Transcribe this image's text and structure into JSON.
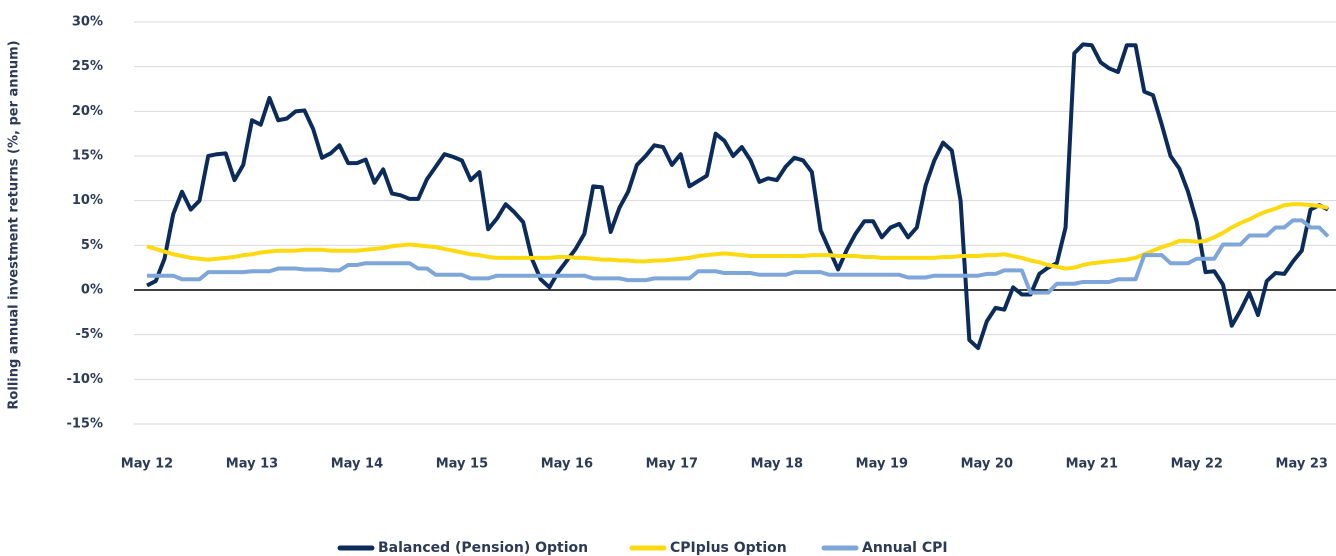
{
  "chart_data": {
    "type": "line",
    "y_label": "Rolling annual investment returns (%, per annum)",
    "categories": [
      "May 12",
      null,
      null,
      null,
      null,
      null,
      null,
      null,
      null,
      null,
      null,
      null,
      "May 13",
      null,
      null,
      null,
      null,
      null,
      null,
      null,
      null,
      null,
      null,
      null,
      "May 14",
      null,
      null,
      null,
      null,
      null,
      null,
      null,
      null,
      null,
      null,
      null,
      "May 15",
      null,
      null,
      null,
      null,
      null,
      null,
      null,
      null,
      null,
      null,
      null,
      "May 16",
      null,
      null,
      null,
      null,
      null,
      null,
      null,
      null,
      null,
      null,
      null,
      "May 17",
      null,
      null,
      null,
      null,
      null,
      null,
      null,
      null,
      null,
      null,
      null,
      "May 18",
      null,
      null,
      null,
      null,
      null,
      null,
      null,
      null,
      null,
      null,
      null,
      "May 19",
      null,
      null,
      null,
      null,
      null,
      null,
      null,
      null,
      null,
      null,
      null,
      "May 20",
      null,
      null,
      null,
      null,
      null,
      null,
      null,
      null,
      null,
      null,
      null,
      "May 21",
      null,
      null,
      null,
      null,
      null,
      null,
      null,
      null,
      null,
      null,
      null,
      "May 22",
      null,
      null,
      null,
      null,
      null,
      null,
      null,
      null,
      null,
      null,
      null,
      "May 23",
      null,
      null,
      null
    ],
    "series": [
      {
        "name": "Balanced (Pension) Option",
        "color": "#0b2c5a",
        "values": [
          0.5,
          1,
          3.5,
          8.5,
          11,
          9,
          10,
          15,
          15.2,
          15.3,
          12.3,
          14,
          19,
          18.5,
          21.5,
          19,
          19.2,
          20,
          20.1,
          18,
          14.8,
          15.3,
          16.2,
          14.2,
          14.2,
          14.6,
          12,
          13.5,
          10.8,
          10.6,
          10.2,
          10.2,
          12.4,
          13.8,
          15.2,
          14.9,
          14.5,
          12.3,
          13.2,
          6.8,
          8,
          9.6,
          8.7,
          7.6,
          3.5,
          1.2,
          0.3,
          2,
          3.3,
          4.6,
          6.3,
          11.6,
          11.5,
          6.5,
          9.2,
          11,
          14,
          15,
          16.2,
          16,
          14,
          15.2,
          11.6,
          12.2,
          12.8,
          17.5,
          16.7,
          15,
          16,
          14.5,
          12.1,
          12.5,
          12.3,
          13.8,
          14.8,
          14.5,
          13.2,
          6.7,
          4.5,
          2.3,
          4.5,
          6.3,
          7.7,
          7.7,
          5.9,
          7,
          7.4,
          5.9,
          7,
          11.7,
          14.5,
          16.5,
          15.6,
          10,
          -5.6,
          -6.5,
          -3.5,
          -2,
          -2.2,
          0.3,
          -0.5,
          -0.5,
          1.8,
          2.5,
          3,
          7,
          26.5,
          27.5,
          27.4,
          25.5,
          24.8,
          24.4,
          27.4,
          27.4,
          22.2,
          21.8,
          18.5,
          15,
          13.6,
          11,
          7.6,
          2,
          2.1,
          0.6,
          -4,
          -2.3,
          -0.3,
          -2.8,
          1,
          1.9,
          1.8,
          3.2,
          4.4,
          9,
          9.5,
          9
        ]
      },
      {
        "name": "CPIplus Option",
        "color": "#fdd90f",
        "values": [
          4.9,
          4.6,
          4.3,
          4,
          3.8,
          3.6,
          3.5,
          3.4,
          3.5,
          3.6,
          3.7,
          3.9,
          4,
          4.2,
          4.3,
          4.4,
          4.4,
          4.4,
          4.5,
          4.5,
          4.5,
          4.4,
          4.4,
          4.4,
          4.4,
          4.5,
          4.6,
          4.7,
          4.9,
          5,
          5.1,
          5,
          4.9,
          4.8,
          4.6,
          4.4,
          4.2,
          4,
          3.9,
          3.7,
          3.6,
          3.6,
          3.6,
          3.6,
          3.6,
          3.6,
          3.6,
          3.7,
          3.7,
          3.6,
          3.6,
          3.5,
          3.4,
          3.4,
          3.3,
          3.3,
          3.2,
          3.2,
          3.3,
          3.3,
          3.4,
          3.5,
          3.6,
          3.8,
          3.9,
          4,
          4.1,
          4,
          3.9,
          3.8,
          3.8,
          3.8,
          3.8,
          3.8,
          3.8,
          3.8,
          3.9,
          3.9,
          3.9,
          3.8,
          3.8,
          3.8,
          3.7,
          3.7,
          3.6,
          3.6,
          3.6,
          3.6,
          3.6,
          3.6,
          3.6,
          3.7,
          3.7,
          3.8,
          3.8,
          3.8,
          3.9,
          3.9,
          4,
          3.8,
          3.6,
          3.3,
          3.1,
          2.8,
          2.6,
          2.4,
          2.5,
          2.8,
          3,
          3.1,
          3.2,
          3.3,
          3.4,
          3.6,
          4,
          4.4,
          4.8,
          5.1,
          5.5,
          5.5,
          5.4,
          5.5,
          5.9,
          6.4,
          7,
          7.5,
          7.9,
          8.4,
          8.8,
          9.1,
          9.5,
          9.6,
          9.6,
          9.5,
          9.4,
          9.2
        ]
      },
      {
        "name": "Annual CPI",
        "color": "#7ea6d8",
        "values": [
          1.6,
          1.6,
          1.6,
          1.6,
          1.2,
          1.2,
          1.2,
          2,
          2,
          2,
          2,
          2,
          2.1,
          2.1,
          2.1,
          2.4,
          2.4,
          2.4,
          2.3,
          2.3,
          2.3,
          2.2,
          2.2,
          2.8,
          2.8,
          3,
          3,
          3,
          3,
          3,
          3,
          2.4,
          2.4,
          1.7,
          1.7,
          1.7,
          1.7,
          1.3,
          1.3,
          1.3,
          1.6,
          1.6,
          1.6,
          1.6,
          1.6,
          1.6,
          1.6,
          1.6,
          1.6,
          1.6,
          1.6,
          1.3,
          1.3,
          1.3,
          1.3,
          1.1,
          1.1,
          1.1,
          1.3,
          1.3,
          1.3,
          1.3,
          1.3,
          2.1,
          2.1,
          2.1,
          1.9,
          1.9,
          1.9,
          1.9,
          1.7,
          1.7,
          1.7,
          1.7,
          2,
          2,
          2,
          2,
          1.7,
          1.7,
          1.7,
          1.7,
          1.7,
          1.7,
          1.7,
          1.7,
          1.7,
          1.4,
          1.4,
          1.4,
          1.6,
          1.6,
          1.6,
          1.6,
          1.6,
          1.6,
          1.8,
          1.8,
          2.2,
          2.2,
          2.2,
          -0.3,
          -0.3,
          -0.3,
          0.7,
          0.7,
          0.7,
          0.9,
          0.9,
          0.9,
          0.9,
          1.2,
          1.2,
          1.2,
          3.9,
          3.9,
          3.9,
          3,
          3,
          3,
          3.5,
          3.5,
          3.5,
          5.1,
          5.1,
          5.1,
          6.1,
          6.1,
          6.1,
          7,
          7,
          7.8,
          7.8,
          7,
          7,
          6
        ]
      }
    ],
    "ylim": [
      -15,
      30
    ],
    "yticks": [
      {
        "value": -15,
        "label": "-15%"
      },
      {
        "value": -10,
        "label": "-10%"
      },
      {
        "value": -5,
        "label": "-5%"
      },
      {
        "value": 0,
        "label": "0%"
      },
      {
        "value": 5,
        "label": "5%"
      },
      {
        "value": 10,
        "label": "10%"
      },
      {
        "value": 15,
        "label": "15%"
      },
      {
        "value": 20,
        "label": "20%"
      },
      {
        "value": 25,
        "label": "25%"
      },
      {
        "value": 30,
        "label": "30%"
      }
    ],
    "grid": true,
    "legend": "bottom"
  }
}
